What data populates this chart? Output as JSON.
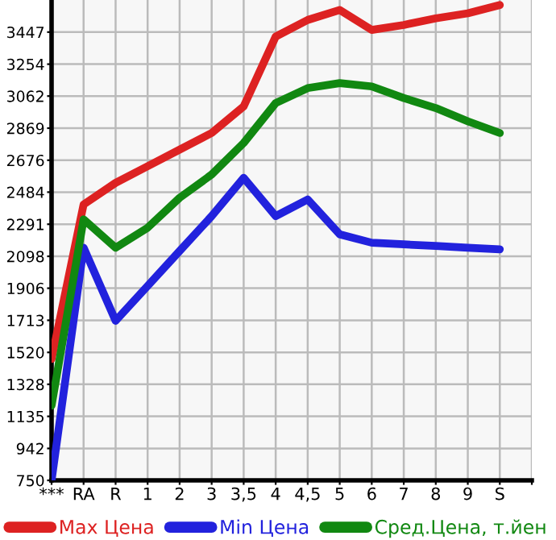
{
  "chart_data": {
    "type": "line",
    "categories": [
      "***",
      "RA",
      "R",
      "1",
      "2",
      "3",
      "3,5",
      "4",
      "4,5",
      "5",
      "6",
      "7",
      "8",
      "9",
      "S",
      null
    ],
    "series": [
      {
        "name": "Max Цена",
        "color": "#dd2222",
        "values": [
          1480,
          2410,
          2540,
          2640,
          2740,
          2840,
          3000,
          3420,
          3520,
          3580,
          3460,
          3490,
          3530,
          3560,
          3610,
          null
        ]
      },
      {
        "name": "Min Цена",
        "color": "#2222dd",
        "values": [
          750,
          2150,
          1710,
          1920,
          2130,
          2340,
          2570,
          2340,
          2440,
          2230,
          2180,
          2170,
          2160,
          2150,
          2140,
          null
        ]
      },
      {
        "name": "Сред.Цена, т.йен",
        "color": "#118811",
        "values": [
          1200,
          2320,
          2150,
          2270,
          2450,
          2590,
          2780,
          3020,
          3110,
          3140,
          3120,
          3050,
          2990,
          2910,
          2840,
          null
        ]
      }
    ],
    "ylim": [
      750,
      3640
    ],
    "yticks": [
      750,
      942,
      1135,
      1328,
      1520,
      1713,
      1906,
      2098,
      2291,
      2484,
      2676,
      2869,
      3062,
      3254,
      3447
    ],
    "grid": true,
    "legend": "bottom",
    "marker": "none",
    "line_style": "solid"
  }
}
